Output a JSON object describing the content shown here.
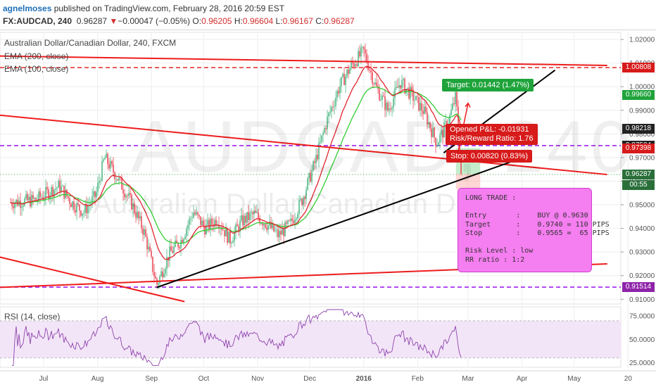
{
  "header": {
    "user": "agnelmoses",
    "published": " published on TradingView.com, February 28, 2016 20:59 EST",
    "symbol": "FX:AUDCAD, 240",
    "last": "0.96287",
    "change_arrow": "▼",
    "change": "−0.00047 (−0.05%)",
    "o_label": "O:",
    "o_value": "0.96205",
    "h_label": "H:",
    "h_value": "0.96604",
    "l_label": "L:",
    "l_value": "0.96167",
    "c_label": "C:",
    "c_value": "0.96287"
  },
  "legend": {
    "title": "Australian Dollar/Canadian Dollar, 240, FXCM",
    "ema200": "EMA (200, close)",
    "ema100": "EMA (100, close)",
    "rsi": "RSI (14, close)"
  },
  "watermark": {
    "symbol": "AUDCAD, 240",
    "name": "Australian Dollar/Canadian Dollar"
  },
  "price_tags": [
    {
      "value": "1.00808",
      "color": "#d71a1a"
    },
    {
      "value": "0.99660",
      "color": "#1fa33b"
    },
    {
      "value": "0.98218",
      "color": "#222222"
    },
    {
      "value": "0.97504",
      "color": "#222222"
    },
    {
      "value": "0.97398",
      "color": "#d71a1a"
    },
    {
      "value": "0.96287",
      "color": "#2a6f3a"
    },
    {
      "value": "00:55",
      "color": "#2a6f3a"
    },
    {
      "value": "0.91514",
      "color": "#8e24aa"
    }
  ],
  "annotations": {
    "target": "Target: 0.01442 (1.47%)",
    "pl": "Opened P&L: -0.01931\nRisk/Reward Ratio: 1.76",
    "stop": "Stop: 0.00820 (0.83%)",
    "note": "LONG TRADE :\n\nEntry       :    BUY @ 0.9630\nTarget      :    0.9740 = 110 PIPS\nStop        :    0.9565 =  65 PIPS\n\nRisk Level : low\nRR ratio : 1:2"
  },
  "colors": {
    "bull": "#53b987",
    "bear": "#eb4d5c",
    "ema200": "#33cc33",
    "ema100": "#e0262f",
    "trend_red": "#ee1c1c",
    "trend_black": "#000000",
    "hline_red": "#e53935",
    "hline_purple": "#a020f0",
    "rsi_line": "#8e44ad",
    "rsi_band": "#f3e5f8",
    "grid": "#eeeeee",
    "note_bg": "#f57ef0"
  },
  "chart_data": {
    "type": "candlestick",
    "symbol": "AUDCAD",
    "interval": "240",
    "x_tick_labels": [
      "Jul",
      "Aug",
      "Sep",
      "Oct",
      "Nov",
      "Dec",
      "2016",
      "Feb",
      "Mar",
      "Apr",
      "May",
      "20"
    ],
    "price_axis_labels": [
      "1.02000",
      "1.01000",
      "1.00000",
      "0.99000",
      "0.98000",
      "0.97000",
      "0.96000",
      "0.95000",
      "0.94000",
      "0.93000",
      "0.92000",
      "0.91000"
    ],
    "ylim": [
      0.908,
      1.023
    ],
    "rsi_axis_labels": [
      "75.0000",
      "50.0000",
      "25.0000"
    ],
    "rsi_ylim": [
      20,
      85
    ],
    "rsi_band": [
      30,
      70
    ],
    "price_series_approx": [
      {
        "date": "2015-06-12",
        "price": 0.951
      },
      {
        "date": "2015-06-26",
        "price": 0.952
      },
      {
        "date": "2015-07-03",
        "price": 0.955
      },
      {
        "date": "2015-07-10",
        "price": 0.958
      },
      {
        "date": "2015-07-17",
        "price": 0.951
      },
      {
        "date": "2015-07-24",
        "price": 0.947
      },
      {
        "date": "2015-07-31",
        "price": 0.954
      },
      {
        "date": "2015-08-05",
        "price": 0.97
      },
      {
        "date": "2015-08-12",
        "price": 0.962
      },
      {
        "date": "2015-08-21",
        "price": 0.95
      },
      {
        "date": "2015-08-28",
        "price": 0.938
      },
      {
        "date": "2015-09-04",
        "price": 0.916
      },
      {
        "date": "2015-09-11",
        "price": 0.929
      },
      {
        "date": "2015-09-18",
        "price": 0.935
      },
      {
        "date": "2015-09-25",
        "price": 0.947
      },
      {
        "date": "2015-10-02",
        "price": 0.94
      },
      {
        "date": "2015-10-09",
        "price": 0.944
      },
      {
        "date": "2015-10-16",
        "price": 0.935
      },
      {
        "date": "2015-10-23",
        "price": 0.943
      },
      {
        "date": "2015-10-30",
        "price": 0.946
      },
      {
        "date": "2015-11-06",
        "price": 0.942
      },
      {
        "date": "2015-11-13",
        "price": 0.937
      },
      {
        "date": "2015-11-20",
        "price": 0.942
      },
      {
        "date": "2015-11-27",
        "price": 0.953
      },
      {
        "date": "2015-12-04",
        "price": 0.968
      },
      {
        "date": "2015-12-11",
        "price": 0.986
      },
      {
        "date": "2015-12-18",
        "price": 1.0
      },
      {
        "date": "2015-12-25",
        "price": 1.009
      },
      {
        "date": "2016-01-01",
        "price": 1.015
      },
      {
        "date": "2016-01-08",
        "price": 1.0
      },
      {
        "date": "2016-01-15",
        "price": 0.99
      },
      {
        "date": "2016-01-22",
        "price": 1.002
      },
      {
        "date": "2016-01-29",
        "price": 0.996
      },
      {
        "date": "2016-02-05",
        "price": 0.989
      },
      {
        "date": "2016-02-12",
        "price": 0.976
      },
      {
        "date": "2016-02-19",
        "price": 0.986
      },
      {
        "date": "2016-02-23",
        "price": 0.996
      },
      {
        "date": "2016-02-26",
        "price": 0.9629
      }
    ],
    "trendlines_approx": [
      {
        "color": "red",
        "from": {
          "date": "2015-06-05",
          "price": 0.988
        },
        "to": {
          "date": "2016-05-20",
          "price": 0.9628
        }
      },
      {
        "color": "red",
        "from": {
          "date": "2015-06-05",
          "price": 1.013
        },
        "to": {
          "date": "2016-05-20",
          "price": 1.009
        }
      },
      {
        "color": "red",
        "from": {
          "date": "2015-06-05",
          "price": 0.928
        },
        "to": {
          "date": "2015-09-20",
          "price": 0.909
        }
      },
      {
        "color": "red",
        "from": {
          "date": "2015-06-05",
          "price": 0.915
        },
        "to": {
          "date": "2016-05-20",
          "price": 0.925
        }
      },
      {
        "color": "black",
        "from": {
          "date": "2015-09-04",
          "price": 0.915
        },
        "to": {
          "date": "2016-03-25",
          "price": 0.968
        }
      },
      {
        "color": "black",
        "from": {
          "date": "2016-02-16",
          "price": 0.972
        },
        "to": {
          "date": "2016-04-20",
          "price": 1.007
        }
      }
    ],
    "horizontal_levels": [
      {
        "price": 1.00808,
        "style": "dashed",
        "color": "red"
      },
      {
        "price": 0.97504,
        "style": "dashed",
        "color": "purple"
      },
      {
        "price": 0.91514,
        "style": "dashed",
        "color": "purple"
      },
      {
        "price": 0.96287,
        "style": "dotted",
        "color": "green"
      }
    ],
    "position": {
      "entry": 0.963,
      "target": 0.974,
      "stop": 0.9565
    }
  }
}
